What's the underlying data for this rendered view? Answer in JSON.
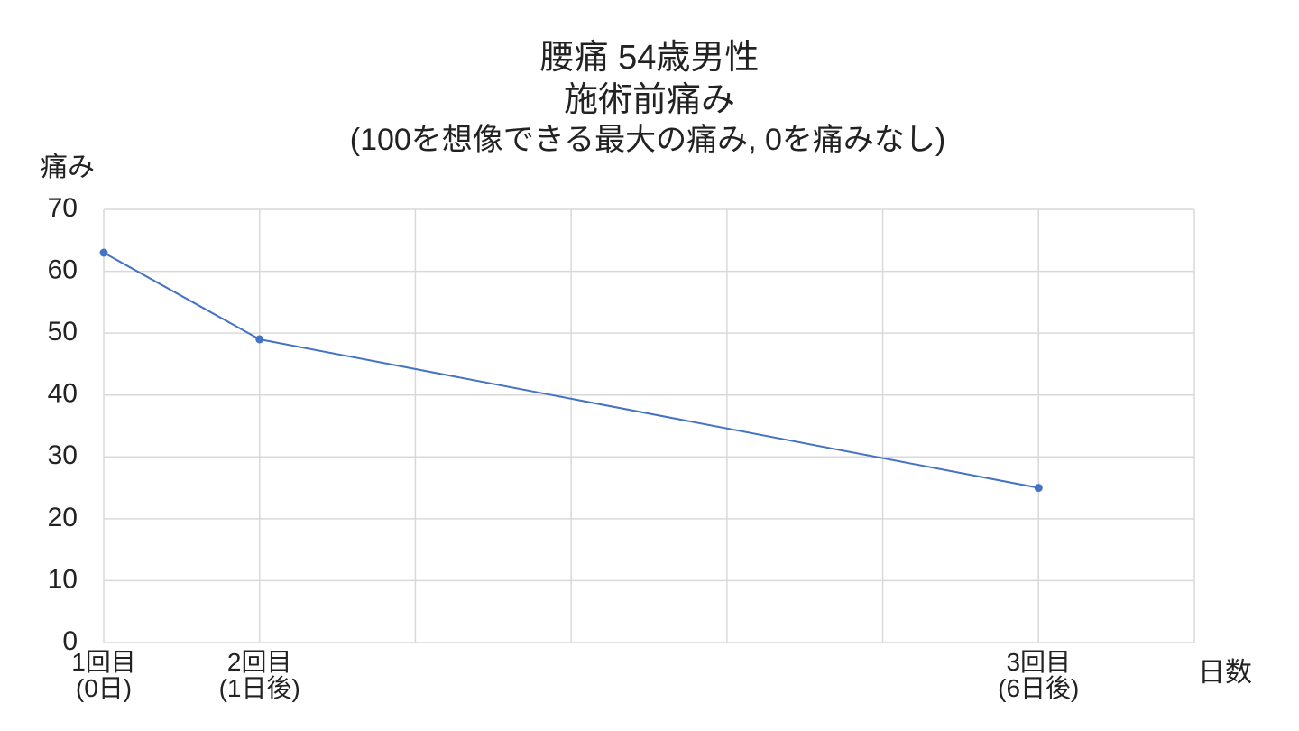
{
  "chart_data": {
    "type": "line",
    "title": [
      "腰痛 54歳男性",
      "施術前痛み"
    ],
    "subtitle": "(100を想像できる最大の痛み, 0を痛みなし)",
    "y_label": "痛み",
    "x_label": "日数",
    "x": [
      0,
      1,
      6
    ],
    "series": [
      {
        "color": "#4472c4",
        "values": [
          63,
          49,
          25
        ]
      }
    ],
    "xlim": [
      0,
      7
    ],
    "xticks": [
      {
        "value": 0,
        "label": "1回目\n(0日)"
      },
      {
        "value": 1,
        "label": "2回目\n(1日後)"
      },
      {
        "value": 2,
        "label": null
      },
      {
        "value": 3,
        "label": null
      },
      {
        "value": 4,
        "label": null
      },
      {
        "value": 5,
        "label": null
      },
      {
        "value": 6,
        "label": "3回目\n(6日後)"
      },
      {
        "value": 7,
        "label": null
      }
    ],
    "ylim": [
      0,
      70
    ],
    "yticks": [
      0,
      10,
      20,
      30,
      40,
      50,
      60,
      70
    ],
    "grid": true
  }
}
